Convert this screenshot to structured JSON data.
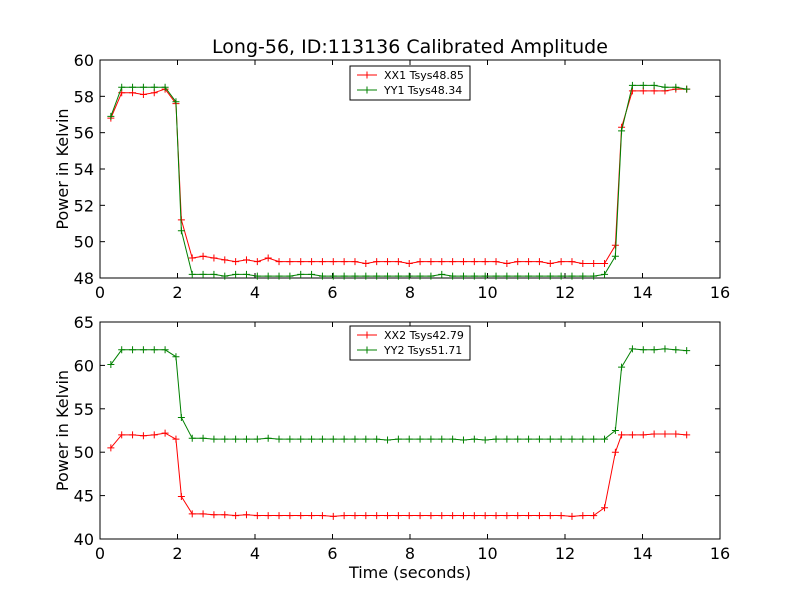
{
  "figure_title": "Long-56, ID:113136 Calibrated Amplitude",
  "chart_data": [
    {
      "type": "line",
      "title": "Long-56, ID:113136 Calibrated Amplitude",
      "xlabel": "",
      "ylabel": "Power in Kelvin",
      "xlim": [
        0,
        16
      ],
      "ylim": [
        48,
        60
      ],
      "xticks": [
        0,
        2,
        4,
        6,
        8,
        10,
        12,
        14,
        16
      ],
      "yticks": [
        48,
        50,
        52,
        54,
        56,
        58,
        60
      ],
      "grid": false,
      "legend_position": "top-center",
      "x": [
        0.28,
        0.56,
        0.84,
        1.12,
        1.4,
        1.68,
        1.96,
        2.1,
        2.38,
        2.66,
        2.94,
        3.22,
        3.5,
        3.78,
        4.06,
        4.34,
        4.62,
        4.9,
        5.18,
        5.46,
        5.74,
        6.02,
        6.3,
        6.58,
        6.86,
        7.14,
        7.42,
        7.7,
        7.98,
        8.26,
        8.54,
        8.82,
        9.1,
        9.38,
        9.66,
        9.94,
        10.22,
        10.5,
        10.78,
        11.06,
        11.34,
        11.62,
        11.9,
        12.18,
        12.46,
        12.74,
        13.02,
        13.3,
        13.46,
        13.74,
        14.02,
        14.3,
        14.58,
        14.86,
        15.14
      ],
      "series": [
        {
          "name": "XX1 Tsys48.85",
          "color": "#ff0000",
          "values": [
            56.8,
            58.2,
            58.2,
            58.1,
            58.2,
            58.4,
            57.6,
            51.2,
            49.1,
            49.2,
            49.1,
            49.0,
            48.9,
            49.0,
            48.9,
            49.1,
            48.9,
            48.9,
            48.9,
            48.9,
            48.9,
            48.9,
            48.9,
            48.9,
            48.8,
            48.9,
            48.9,
            48.9,
            48.8,
            48.9,
            48.9,
            48.9,
            48.9,
            48.9,
            48.9,
            48.9,
            48.9,
            48.8,
            48.9,
            48.9,
            48.9,
            48.8,
            48.9,
            48.9,
            48.8,
            48.8,
            48.8,
            49.8,
            56.3,
            58.3,
            58.3,
            58.3,
            58.3,
            58.4,
            58.4
          ]
        },
        {
          "name": "YY1 Tsys48.34",
          "color": "#008000",
          "values": [
            56.9,
            58.5,
            58.5,
            58.5,
            58.5,
            58.5,
            57.7,
            50.6,
            48.2,
            48.2,
            48.2,
            48.1,
            48.2,
            48.2,
            48.1,
            48.1,
            48.1,
            48.1,
            48.2,
            48.2,
            48.1,
            48.1,
            48.1,
            48.1,
            48.1,
            48.1,
            48.1,
            48.1,
            48.1,
            48.1,
            48.1,
            48.2,
            48.1,
            48.1,
            48.1,
            48.1,
            48.1,
            48.1,
            48.1,
            48.1,
            48.1,
            48.1,
            48.1,
            48.1,
            48.1,
            48.1,
            48.2,
            49.2,
            56.1,
            58.6,
            58.6,
            58.6,
            58.5,
            58.5,
            58.4
          ]
        }
      ]
    },
    {
      "type": "line",
      "title": "",
      "xlabel": "Time (seconds)",
      "ylabel": "Power in Kelvin",
      "xlim": [
        0,
        16
      ],
      "ylim": [
        40,
        65
      ],
      "xticks": [
        0,
        2,
        4,
        6,
        8,
        10,
        12,
        14,
        16
      ],
      "yticks": [
        40,
        45,
        50,
        55,
        60,
        65
      ],
      "grid": false,
      "legend_position": "top-center",
      "x": [
        0.28,
        0.56,
        0.84,
        1.12,
        1.4,
        1.68,
        1.96,
        2.1,
        2.38,
        2.66,
        2.94,
        3.22,
        3.5,
        3.78,
        4.06,
        4.34,
        4.62,
        4.9,
        5.18,
        5.46,
        5.74,
        6.02,
        6.3,
        6.58,
        6.86,
        7.14,
        7.42,
        7.7,
        7.98,
        8.26,
        8.54,
        8.82,
        9.1,
        9.38,
        9.66,
        9.94,
        10.22,
        10.5,
        10.78,
        11.06,
        11.34,
        11.62,
        11.9,
        12.18,
        12.46,
        12.74,
        13.02,
        13.3,
        13.46,
        13.74,
        14.02,
        14.3,
        14.58,
        14.86,
        15.14
      ],
      "series": [
        {
          "name": "XX2 Tsys42.79",
          "color": "#ff0000",
          "values": [
            50.5,
            52.0,
            52.0,
            51.9,
            52.0,
            52.2,
            51.5,
            44.9,
            42.9,
            42.9,
            42.8,
            42.8,
            42.7,
            42.8,
            42.7,
            42.7,
            42.7,
            42.7,
            42.7,
            42.7,
            42.7,
            42.6,
            42.7,
            42.7,
            42.7,
            42.7,
            42.7,
            42.7,
            42.7,
            42.7,
            42.7,
            42.7,
            42.7,
            42.7,
            42.7,
            42.7,
            42.7,
            42.7,
            42.7,
            42.7,
            42.7,
            42.7,
            42.7,
            42.6,
            42.7,
            42.7,
            43.6,
            50.0,
            52.0,
            52.0,
            52.0,
            52.1,
            52.1,
            52.1,
            52.0
          ]
        },
        {
          "name": "YY2 Tsys51.71",
          "color": "#008000",
          "values": [
            60.1,
            61.8,
            61.8,
            61.8,
            61.8,
            61.8,
            61.0,
            54.0,
            51.6,
            51.6,
            51.5,
            51.5,
            51.5,
            51.5,
            51.5,
            51.6,
            51.5,
            51.5,
            51.5,
            51.5,
            51.5,
            51.5,
            51.5,
            51.5,
            51.5,
            51.5,
            51.4,
            51.5,
            51.5,
            51.5,
            51.5,
            51.5,
            51.5,
            51.4,
            51.5,
            51.4,
            51.5,
            51.5,
            51.5,
            51.5,
            51.5,
            51.5,
            51.5,
            51.5,
            51.5,
            51.5,
            51.5,
            52.5,
            59.8,
            61.9,
            61.8,
            61.8,
            61.9,
            61.8,
            61.7
          ]
        }
      ]
    }
  ]
}
